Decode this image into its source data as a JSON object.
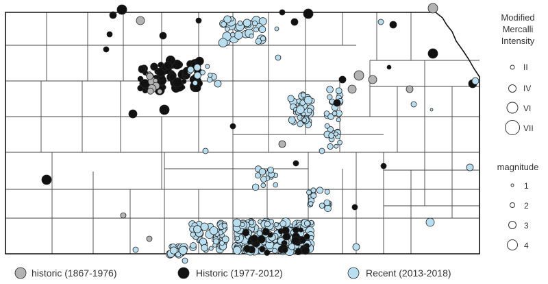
{
  "legend_intensity": {
    "title_lines": [
      "Modified",
      "Mercalli",
      "Intensity"
    ],
    "items": [
      "II",
      "IV",
      "VI",
      "VII"
    ]
  },
  "legend_magnitude": {
    "title": "magnitude",
    "items": [
      "1",
      "2",
      "3",
      "4"
    ]
  },
  "legend_categories": [
    {
      "label": "historic (1867-1976)",
      "color": "#b3b3b3"
    },
    {
      "label": "Historic (1977-2012)",
      "color": "#111111"
    },
    {
      "label": "Recent (2013-2018)",
      "color": "#b9def0"
    }
  ],
  "colors": {
    "historic": "#b3b3b3",
    "Historic": "#111111",
    "Recent": "#b9def0"
  }
}
